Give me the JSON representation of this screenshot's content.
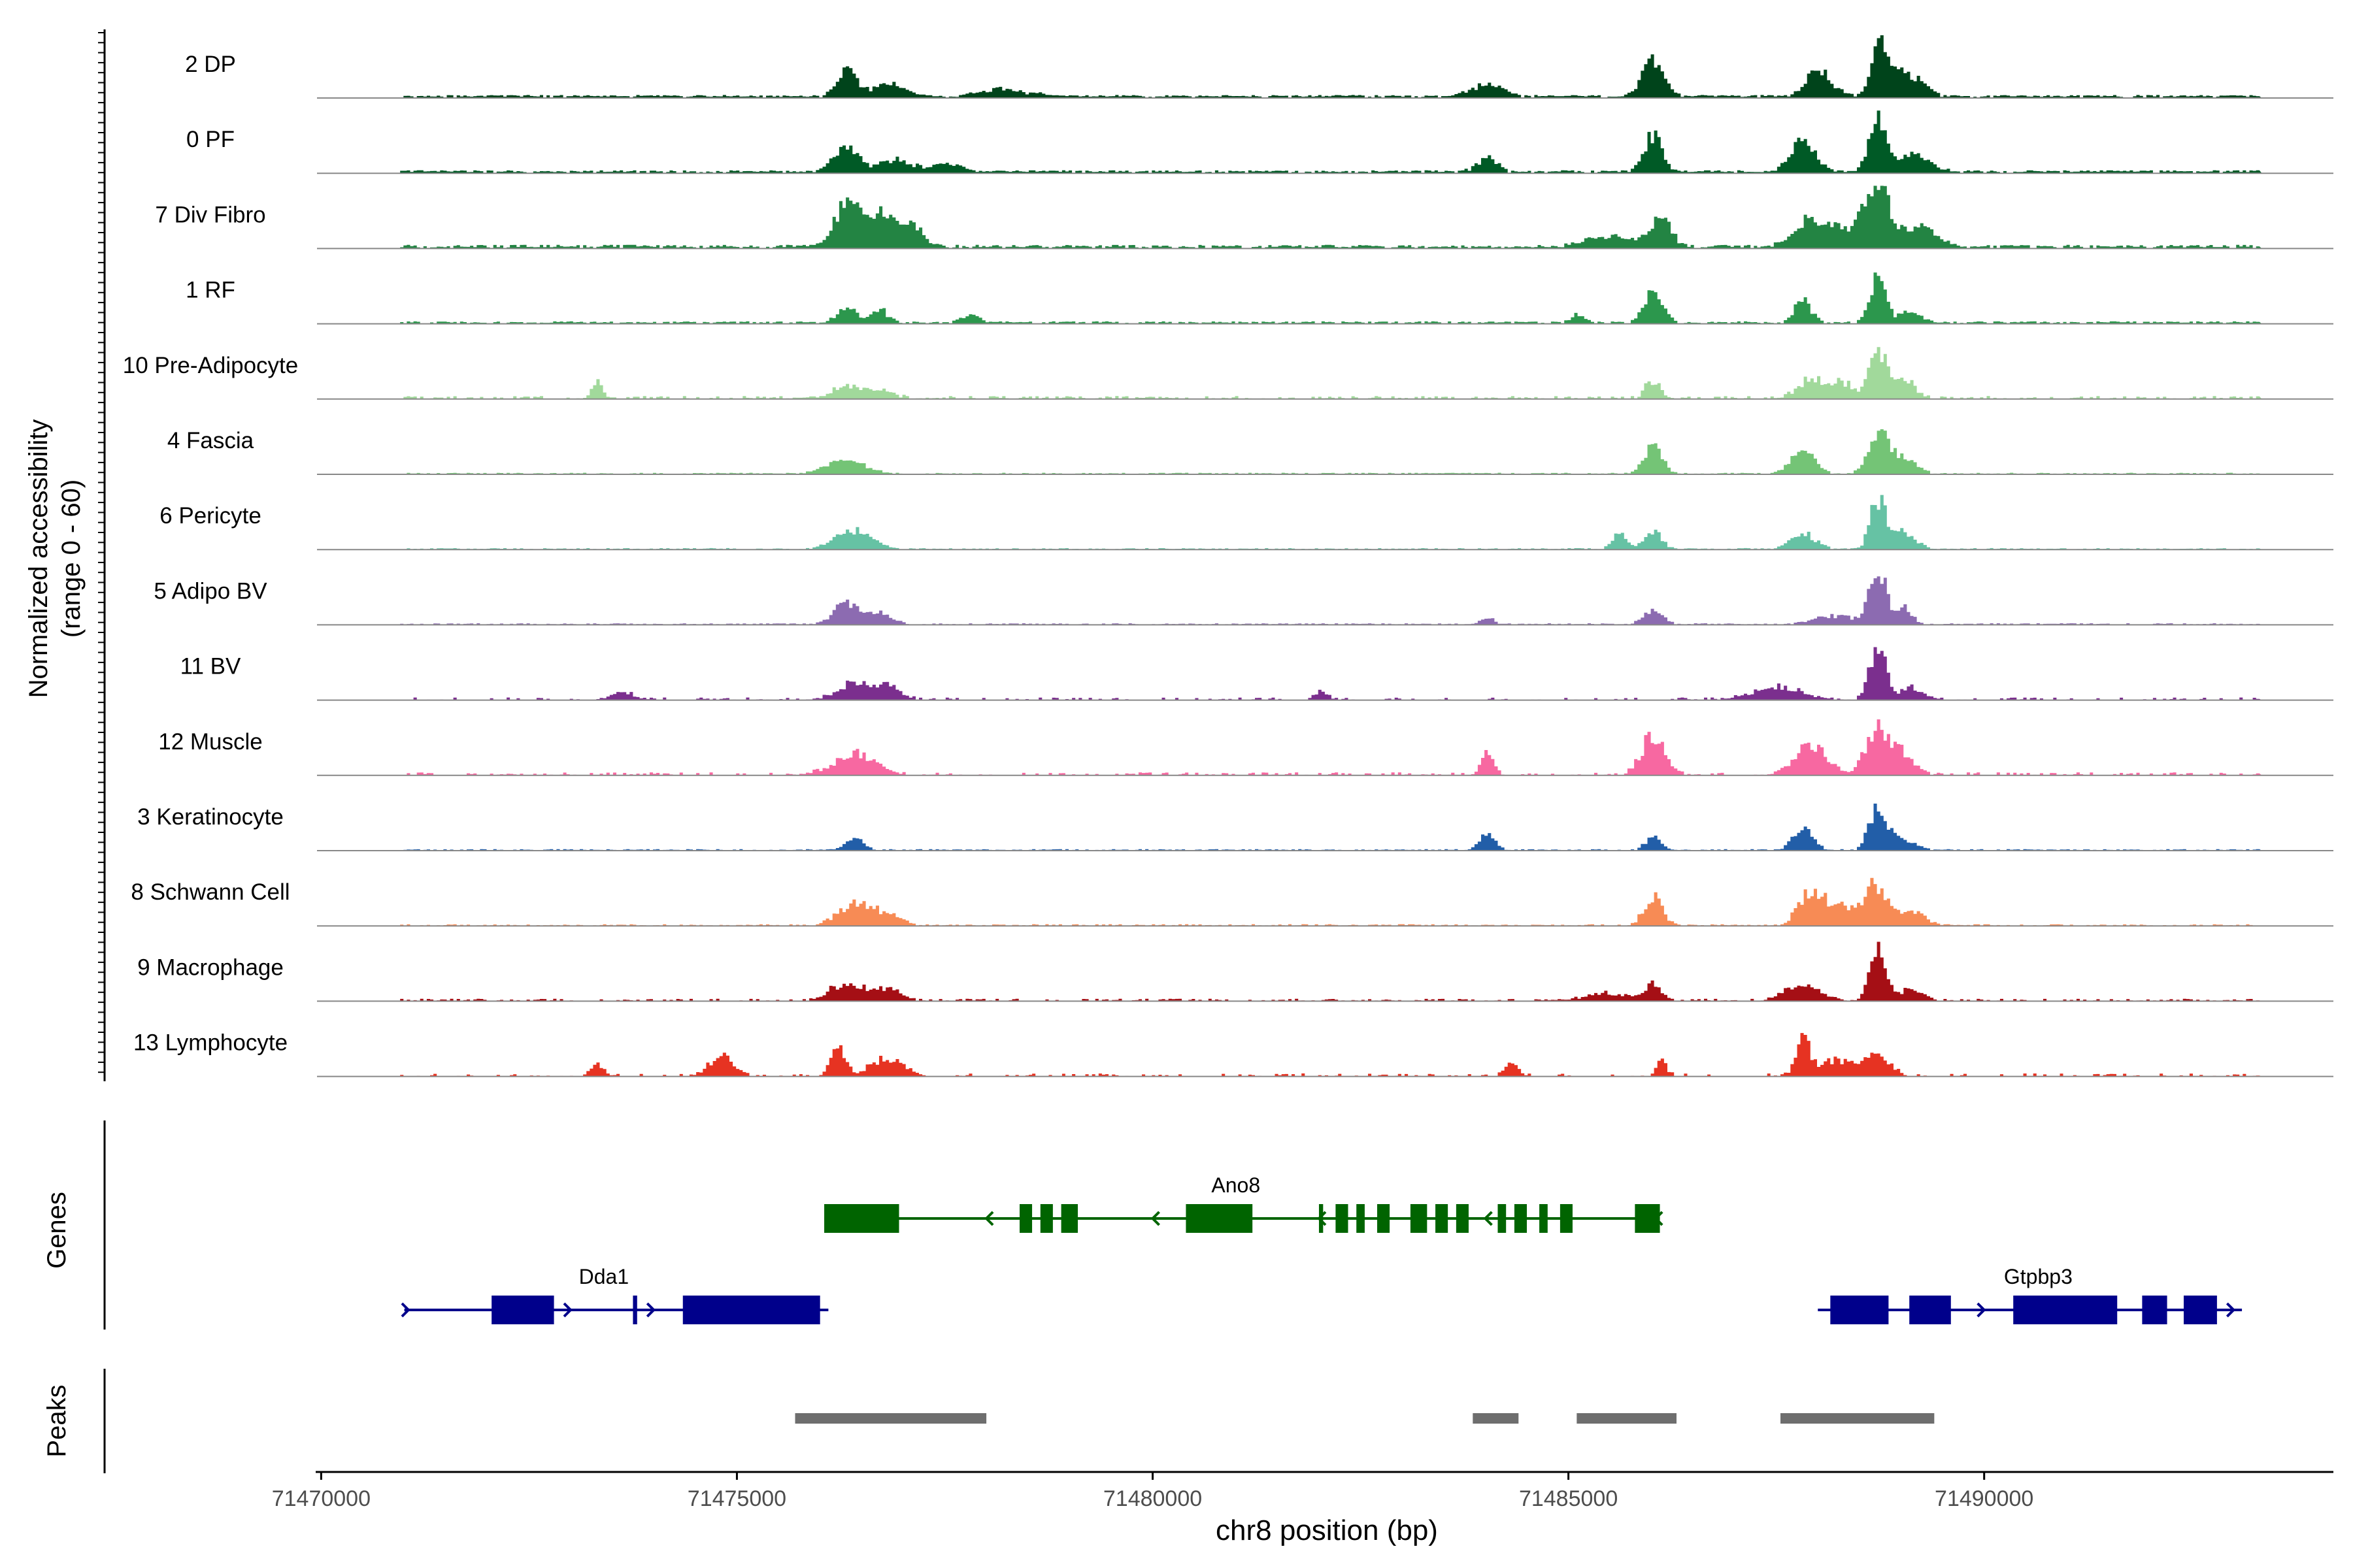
{
  "chart_data": {
    "type": "area",
    "title": "",
    "xlabel": "chr8 position (bp)",
    "ylabel_line1": "Normalized accessibility",
    "ylabel_line2": "(range 0 - 60)",
    "yrange": [
      0,
      60
    ],
    "xlim": [
      71469950,
      71494200
    ],
    "xticks": [
      71470000,
      71475000,
      71480000,
      71485000,
      71490000
    ],
    "xtick_labels": [
      "71470000",
      "71475000",
      "71480000",
      "71485000",
      "71490000"
    ],
    "genes_label": "Genes",
    "peaks_label": "Peaks",
    "tracks": [
      {
        "name": "2 DP",
        "color": "#00441b",
        "baseline": 0.3,
        "noise": 0.25,
        "density": 0.92,
        "peaks": [
          [
            71476300,
            120,
            0.42
          ],
          [
            71476800,
            200,
            0.2
          ],
          [
            71478200,
            300,
            0.12
          ],
          [
            71484000,
            180,
            0.22
          ],
          [
            71486000,
            130,
            0.62
          ],
          [
            71488000,
            160,
            0.42
          ],
          [
            71488700,
            80,
            0.95
          ],
          [
            71488900,
            150,
            0.52
          ],
          [
            71489200,
            120,
            0.2
          ]
        ]
      },
      {
        "name": "0 PF",
        "color": "#005a26",
        "baseline": 0.3,
        "noise": 0.25,
        "density": 0.9,
        "peaks": [
          [
            71476300,
            150,
            0.42
          ],
          [
            71476900,
            200,
            0.2
          ],
          [
            71477500,
            200,
            0.12
          ],
          [
            71484000,
            120,
            0.25
          ],
          [
            71486000,
            110,
            0.62
          ],
          [
            71487800,
            150,
            0.5
          ],
          [
            71488700,
            100,
            0.82
          ],
          [
            71489100,
            200,
            0.3
          ]
        ]
      },
      {
        "name": "7 Div Fibro",
        "color": "#238443",
        "baseline": 0.3,
        "noise": 0.35,
        "density": 0.85,
        "peaks": [
          [
            71476300,
            140,
            0.72
          ],
          [
            71476700,
            180,
            0.55
          ],
          [
            71477100,
            150,
            0.3
          ],
          [
            71485500,
            300,
            0.18
          ],
          [
            71486100,
            120,
            0.48
          ],
          [
            71487900,
            200,
            0.45
          ],
          [
            71488400,
            250,
            0.32
          ],
          [
            71488700,
            130,
            1.0
          ],
          [
            71489200,
            200,
            0.35
          ]
        ]
      },
      {
        "name": "1 RF",
        "color": "#2c974d",
        "baseline": 0.25,
        "noise": 0.2,
        "density": 0.75,
        "peaks": [
          [
            71476300,
            120,
            0.25
          ],
          [
            71476700,
            100,
            0.22
          ],
          [
            71477800,
            120,
            0.12
          ],
          [
            71485100,
            80,
            0.14
          ],
          [
            71486000,
            110,
            0.5
          ],
          [
            71487800,
            100,
            0.4
          ],
          [
            71488700,
            100,
            0.75
          ],
          [
            71489100,
            120,
            0.2
          ]
        ]
      },
      {
        "name": "10 Pre-Adipocyte",
        "color": "#a1d99b",
        "baseline": 0.12,
        "noise": 0.35,
        "density": 0.55,
        "peaks": [
          [
            71473300,
            70,
            0.25
          ],
          [
            71476300,
            180,
            0.18
          ],
          [
            71476700,
            150,
            0.14
          ],
          [
            71486000,
            90,
            0.3
          ],
          [
            71487900,
            150,
            0.35
          ],
          [
            71488300,
            150,
            0.25
          ],
          [
            71488700,
            90,
            0.88
          ],
          [
            71489000,
            150,
            0.3
          ]
        ]
      },
      {
        "name": "4 Fascia",
        "color": "#74c476",
        "baseline": 0.12,
        "noise": 0.15,
        "density": 0.8,
        "peaks": [
          [
            71476300,
            220,
            0.25
          ],
          [
            71486000,
            110,
            0.45
          ],
          [
            71487800,
            140,
            0.42
          ],
          [
            71488700,
            110,
            0.72
          ],
          [
            71489000,
            150,
            0.3
          ]
        ]
      },
      {
        "name": "6 Pericyte",
        "color": "#66c2a4",
        "baseline": 0.1,
        "noise": 0.15,
        "density": 0.7,
        "peaks": [
          [
            71476400,
            220,
            0.32
          ],
          [
            71485600,
            90,
            0.25
          ],
          [
            71486000,
            100,
            0.3
          ],
          [
            71487800,
            150,
            0.28
          ],
          [
            71488700,
            90,
            0.82
          ],
          [
            71489000,
            150,
            0.3
          ]
        ]
      },
      {
        "name": "5 Adipo BV",
        "color": "#8c6bb1",
        "baseline": 0.12,
        "noise": 0.15,
        "density": 0.75,
        "peaks": [
          [
            71476300,
            150,
            0.35
          ],
          [
            71476700,
            150,
            0.18
          ],
          [
            71484000,
            80,
            0.12
          ],
          [
            71486000,
            110,
            0.25
          ],
          [
            71488200,
            250,
            0.15
          ],
          [
            71488700,
            90,
            1.0
          ],
          [
            71489000,
            100,
            0.3
          ]
        ]
      },
      {
        "name": "11 BV",
        "color": "#7b2f8e",
        "baseline": 0.0,
        "noise": 0.35,
        "density": 0.4,
        "peaks": [
          [
            71473600,
            120,
            0.15
          ],
          [
            71476400,
            200,
            0.28
          ],
          [
            71476800,
            150,
            0.22
          ],
          [
            71482000,
            80,
            0.15
          ],
          [
            71487500,
            300,
            0.2
          ],
          [
            71488700,
            90,
            1.0
          ],
          [
            71489100,
            150,
            0.2
          ]
        ]
      },
      {
        "name": "12 Muscle",
        "color": "#f768a1",
        "baseline": 0.0,
        "noise": 0.4,
        "density": 0.45,
        "peaks": [
          [
            71476400,
            250,
            0.35
          ],
          [
            71484000,
            70,
            0.4
          ],
          [
            71486000,
            140,
            0.65
          ],
          [
            71487900,
            200,
            0.5
          ],
          [
            71488700,
            140,
            0.82
          ],
          [
            71489000,
            150,
            0.3
          ]
        ]
      },
      {
        "name": "3 Keratinocyte",
        "color": "#225ea8",
        "baseline": 0.1,
        "noise": 0.15,
        "density": 0.85,
        "peaks": [
          [
            71476400,
            100,
            0.2
          ],
          [
            71484000,
            90,
            0.3
          ],
          [
            71486000,
            90,
            0.22
          ],
          [
            71487800,
            120,
            0.35
          ],
          [
            71488700,
            100,
            0.72
          ],
          [
            71489000,
            150,
            0.2
          ]
        ]
      },
      {
        "name": "8 Schwann Cell",
        "color": "#f78b55",
        "baseline": 0.05,
        "noise": 0.2,
        "density": 0.7,
        "peaks": [
          [
            71476400,
            200,
            0.35
          ],
          [
            71476800,
            150,
            0.18
          ],
          [
            71486000,
            110,
            0.48
          ],
          [
            71487900,
            150,
            0.55
          ],
          [
            71488300,
            200,
            0.3
          ],
          [
            71488700,
            130,
            0.68
          ],
          [
            71489100,
            150,
            0.25
          ]
        ]
      },
      {
        "name": "9 Macrophage",
        "color": "#a50f15",
        "baseline": 0.05,
        "noise": 0.3,
        "density": 0.6,
        "peaks": [
          [
            71476300,
            200,
            0.3
          ],
          [
            71476800,
            150,
            0.2
          ],
          [
            71485500,
            300,
            0.12
          ],
          [
            71486000,
            90,
            0.25
          ],
          [
            71487800,
            200,
            0.3
          ],
          [
            71488700,
            90,
            1.0
          ],
          [
            71489100,
            150,
            0.2
          ]
        ]
      },
      {
        "name": "13 Lymphocyte",
        "color": "#e63322",
        "baseline": 0.0,
        "noise": 0.4,
        "density": 0.35,
        "peaks": [
          [
            71473300,
            80,
            0.22
          ],
          [
            71474800,
            150,
            0.3
          ],
          [
            71476200,
            90,
            0.48
          ],
          [
            71476800,
            200,
            0.28
          ],
          [
            71484300,
            80,
            0.22
          ],
          [
            71486100,
            60,
            0.3
          ],
          [
            71487800,
            80,
            0.62
          ],
          [
            71488200,
            200,
            0.28
          ],
          [
            71488700,
            150,
            0.35
          ]
        ]
      }
    ],
    "genes": [
      {
        "name": "Ano8",
        "strand": "-",
        "row": 0,
        "color": "#006400",
        "start": 71476050,
        "end": 71486100,
        "exons": [
          [
            71476050,
            71476950
          ],
          [
            71478400,
            71478550
          ],
          [
            71478650,
            71478800
          ],
          [
            71478900,
            71479100
          ],
          [
            71480400,
            71481200
          ],
          [
            71482000,
            71482050
          ],
          [
            71482200,
            71482350
          ],
          [
            71482450,
            71482550
          ],
          [
            71482700,
            71482850
          ],
          [
            71483100,
            71483300
          ],
          [
            71483400,
            71483550
          ],
          [
            71483650,
            71483800
          ],
          [
            71484150,
            71484250
          ],
          [
            71484350,
            71484500
          ],
          [
            71484650,
            71484750
          ],
          [
            71484900,
            71485050
          ],
          [
            71485800,
            71486100
          ]
        ],
        "arrows": [
          71478000,
          71480000,
          71482000,
          71484000,
          71486050
        ]
      },
      {
        "name": "Dda1",
        "strand": "+",
        "row": 1,
        "color": "#00008b",
        "start": 71471000,
        "end": 71476100,
        "exons": [
          [
            71472050,
            71472800
          ],
          [
            71473750,
            71473800
          ],
          [
            71474350,
            71476000
          ]
        ],
        "arrows": [
          71471050,
          71473000,
          71474000
        ]
      },
      {
        "name": "Gtpbp3",
        "strand": "+",
        "row": 1,
        "color": "#00008b",
        "start": 71488000,
        "end": 71493100,
        "exons": [
          [
            71488150,
            71488850
          ],
          [
            71489100,
            71489600
          ],
          [
            71490350,
            71491600
          ],
          [
            71491900,
            71492200
          ],
          [
            71492400,
            71492800
          ]
        ],
        "arrows": [
          71490000,
          71493000
        ]
      }
    ],
    "peaks": [
      [
        71475700,
        71478000
      ],
      [
        71483850,
        71484400
      ],
      [
        71485100,
        71486300
      ],
      [
        71487550,
        71489400
      ]
    ]
  }
}
